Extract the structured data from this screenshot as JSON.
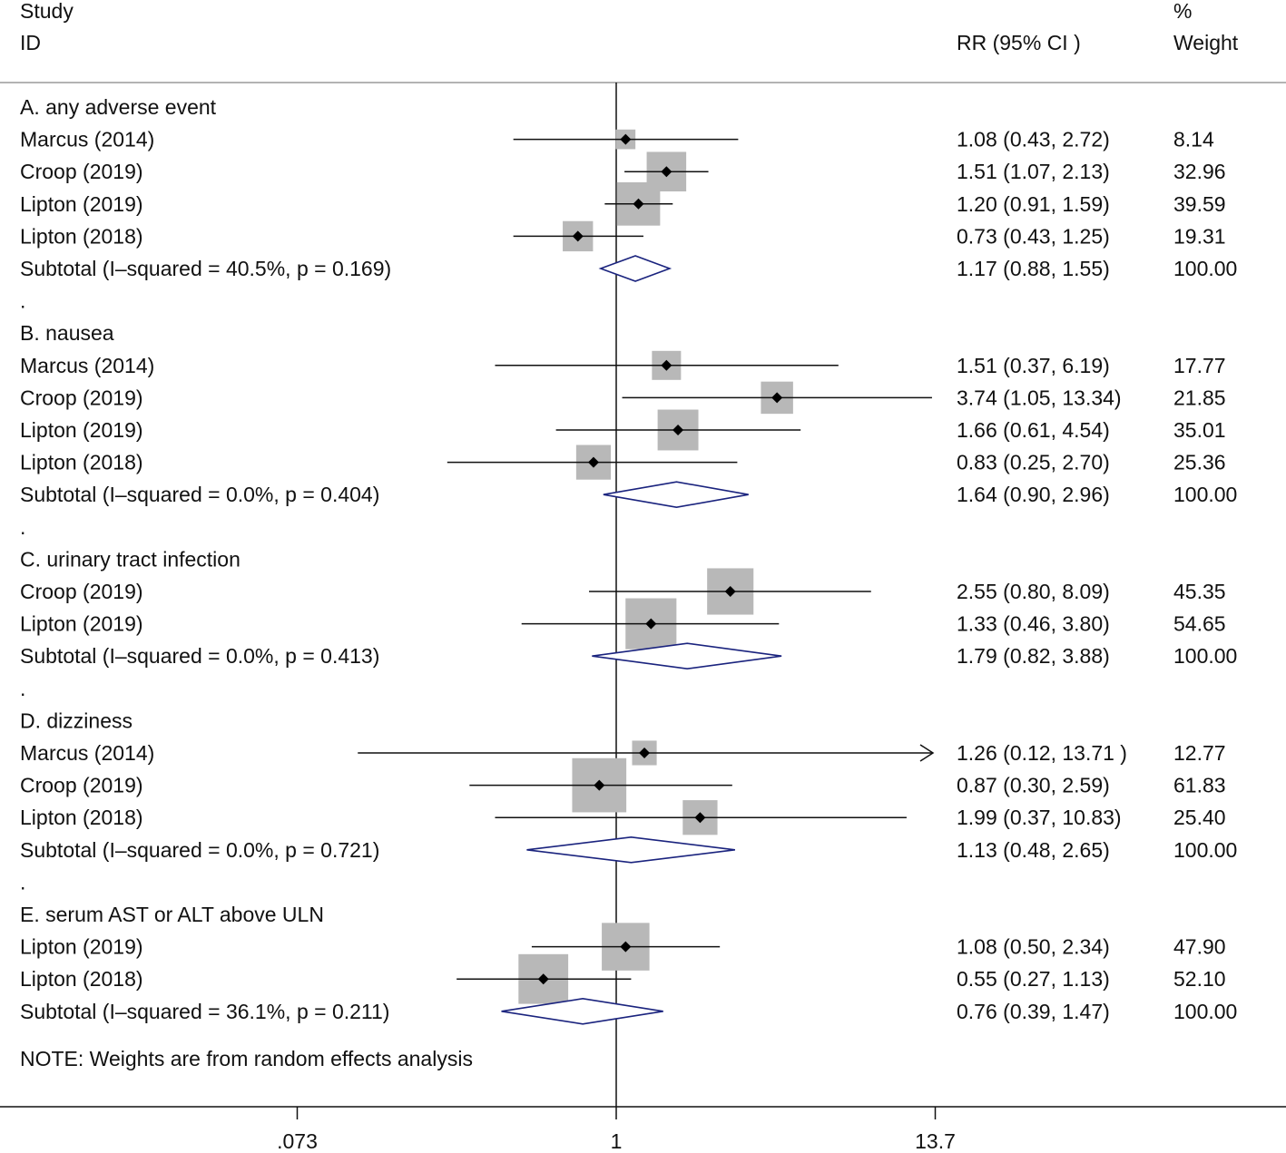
{
  "chart_data": {
    "type": "forest",
    "header": {
      "study_line1": "Study",
      "study_line2": "ID",
      "ci_label": "RR (95% CI  )",
      "weight_line1": "%",
      "weight_line2": "Weight"
    },
    "x_scale": "log",
    "x_reference": 1,
    "x_ticks": [
      ".073",
      "1",
      "13.7"
    ],
    "x_tick_values": [
      0.073,
      1,
      13.7
    ],
    "rows": [
      {
        "kind": "group",
        "label": "A. any adverse event"
      },
      {
        "kind": "study",
        "label": "Marcus (2014)",
        "rr": 1.08,
        "lo": 0.43,
        "hi": 2.72,
        "ci_text": "1.08 (0.43, 2.72)",
        "weight": 8.14,
        "weight_text": "8.14"
      },
      {
        "kind": "study",
        "label": "Croop (2019)",
        "rr": 1.51,
        "lo": 1.07,
        "hi": 2.13,
        "ci_text": "1.51 (1.07, 2.13)",
        "weight": 32.96,
        "weight_text": "32.96"
      },
      {
        "kind": "study",
        "label": "Lipton (2019)",
        "rr": 1.2,
        "lo": 0.91,
        "hi": 1.59,
        "ci_text": "1.20 (0.91, 1.59)",
        "weight": 39.59,
        "weight_text": "39.59"
      },
      {
        "kind": "study",
        "label": "Lipton (2018)",
        "rr": 0.73,
        "lo": 0.43,
        "hi": 1.25,
        "ci_text": "0.73 (0.43, 1.25)",
        "weight": 19.31,
        "weight_text": "19.31"
      },
      {
        "kind": "subtotal",
        "label": "Subtotal  (I–squared = 40.5%, p = 0.169)",
        "rr": 1.17,
        "lo": 0.88,
        "hi": 1.55,
        "ci_text": "1.17 (0.88, 1.55)",
        "weight_text": "100.00"
      },
      {
        "kind": "sep",
        "label": "."
      },
      {
        "kind": "group",
        "label": "B. nausea"
      },
      {
        "kind": "study",
        "label": "Marcus (2014)",
        "rr": 1.51,
        "lo": 0.37,
        "hi": 6.19,
        "ci_text": "1.51 (0.37, 6.19)",
        "weight": 17.77,
        "weight_text": "17.77"
      },
      {
        "kind": "study",
        "label": "Croop (2019)",
        "rr": 3.74,
        "lo": 1.05,
        "hi": 13.34,
        "ci_text": "3.74 (1.05, 13.34)",
        "weight": 21.85,
        "weight_text": "21.85"
      },
      {
        "kind": "study",
        "label": "Lipton (2019)",
        "rr": 1.66,
        "lo": 0.61,
        "hi": 4.54,
        "ci_text": "1.66 (0.61, 4.54)",
        "weight": 35.01,
        "weight_text": "35.01"
      },
      {
        "kind": "study",
        "label": "Lipton (2018)",
        "rr": 0.83,
        "lo": 0.25,
        "hi": 2.7,
        "ci_text": "0.83 (0.25, 2.70)",
        "weight": 25.36,
        "weight_text": "25.36"
      },
      {
        "kind": "subtotal",
        "label": "Subtotal  (I–squared = 0.0%, p = 0.404)",
        "rr": 1.64,
        "lo": 0.9,
        "hi": 2.96,
        "ci_text": "1.64 (0.90, 2.96)",
        "weight_text": "100.00"
      },
      {
        "kind": "sep",
        "label": "."
      },
      {
        "kind": "group",
        "label": "C. urinary tract infection"
      },
      {
        "kind": "study",
        "label": "Croop (2019)",
        "rr": 2.55,
        "lo": 0.8,
        "hi": 8.09,
        "ci_text": "2.55 (0.80, 8.09)",
        "weight": 45.35,
        "weight_text": "45.35"
      },
      {
        "kind": "study",
        "label": "Lipton (2019)",
        "rr": 1.33,
        "lo": 0.46,
        "hi": 3.8,
        "ci_text": "1.33 (0.46, 3.80)",
        "weight": 54.65,
        "weight_text": "54.65"
      },
      {
        "kind": "subtotal",
        "label": "Subtotal  (I–squared = 0.0%, p = 0.413)",
        "rr": 1.79,
        "lo": 0.82,
        "hi": 3.88,
        "ci_text": "1.79 (0.82, 3.88)",
        "weight_text": "100.00"
      },
      {
        "kind": "sep",
        "label": "."
      },
      {
        "kind": "group",
        "label": "D. dizziness"
      },
      {
        "kind": "study",
        "label": "Marcus (2014)",
        "rr": 1.26,
        "lo": 0.12,
        "hi": 13.71,
        "ci_text": "1.26 (0.12, 13.71 )",
        "weight": 12.77,
        "weight_text": "12.77",
        "arrow_right": true
      },
      {
        "kind": "study",
        "label": "Croop (2019)",
        "rr": 0.87,
        "lo": 0.3,
        "hi": 2.59,
        "ci_text": "0.87 (0.30, 2.59)",
        "weight": 61.83,
        "weight_text": "61.83"
      },
      {
        "kind": "study",
        "label": "Lipton (2018)",
        "rr": 1.99,
        "lo": 0.37,
        "hi": 10.83,
        "ci_text": "1.99 (0.37, 10.83)",
        "weight": 25.4,
        "weight_text": "25.40"
      },
      {
        "kind": "subtotal",
        "label": "Subtotal  (I–squared = 0.0%, p = 0.721)",
        "rr": 1.13,
        "lo": 0.48,
        "hi": 2.65,
        "ci_text": "1.13 (0.48, 2.65)",
        "weight_text": "100.00"
      },
      {
        "kind": "sep",
        "label": "."
      },
      {
        "kind": "group",
        "label": "E. serum AST or ALT above ULN"
      },
      {
        "kind": "study",
        "label": "Lipton (2019)",
        "rr": 1.08,
        "lo": 0.5,
        "hi": 2.34,
        "ci_text": "1.08 (0.50, 2.34)",
        "weight": 47.9,
        "weight_text": "47.90"
      },
      {
        "kind": "study",
        "label": "Lipton (2018)",
        "rr": 0.55,
        "lo": 0.27,
        "hi": 1.13,
        "ci_text": "0.55 (0.27, 1.13)",
        "weight": 52.1,
        "weight_text": "52.10"
      },
      {
        "kind": "subtotal",
        "label": "Subtotal  (I–squared = 36.1%, p = 0.211)",
        "rr": 0.76,
        "lo": 0.39,
        "hi": 1.47,
        "ci_text": "0.76 (0.39, 1.47)",
        "weight_text": "100.00"
      }
    ],
    "note": "NOTE: Weights are from random effects analysis",
    "colors": {
      "text": "#111111",
      "line": "#111111",
      "box": "#b8b8b8",
      "point": "#000000",
      "diamond": "#1a237e",
      "rule": "#9a9a9a"
    }
  }
}
